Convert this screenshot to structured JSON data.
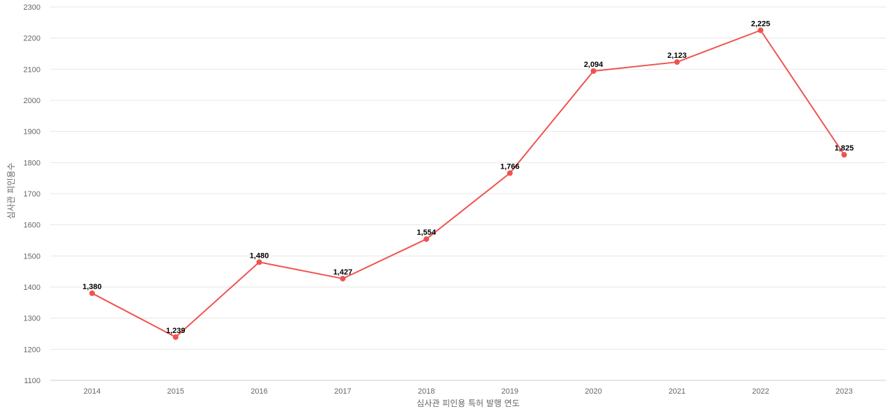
{
  "chart_data": {
    "type": "line",
    "title": "",
    "xlabel": "심사관 피인용 특허 발행 연도",
    "ylabel": "심사관 피인용수",
    "categories": [
      "2014",
      "2015",
      "2016",
      "2017",
      "2018",
      "2019",
      "2020",
      "2021",
      "2022",
      "2023"
    ],
    "series": [
      {
        "values": [
          1380,
          1239,
          1480,
          1427,
          1554,
          1766,
          2094,
          2123,
          2225,
          1825
        ],
        "labels": [
          "1,380",
          "1,239",
          "1,480",
          "1,427",
          "1,554",
          "1,766",
          "2,094",
          "2,123",
          "2,225",
          "1,825"
        ],
        "color": "#ef5350"
      }
    ],
    "ylim": [
      1100,
      2300
    ],
    "yticks": [
      "1100",
      "1200",
      "1300",
      "1400",
      "1500",
      "1600",
      "1700",
      "1800",
      "1900",
      "2000",
      "2100",
      "2200",
      "2300"
    ],
    "grid": true,
    "legend": "none"
  }
}
